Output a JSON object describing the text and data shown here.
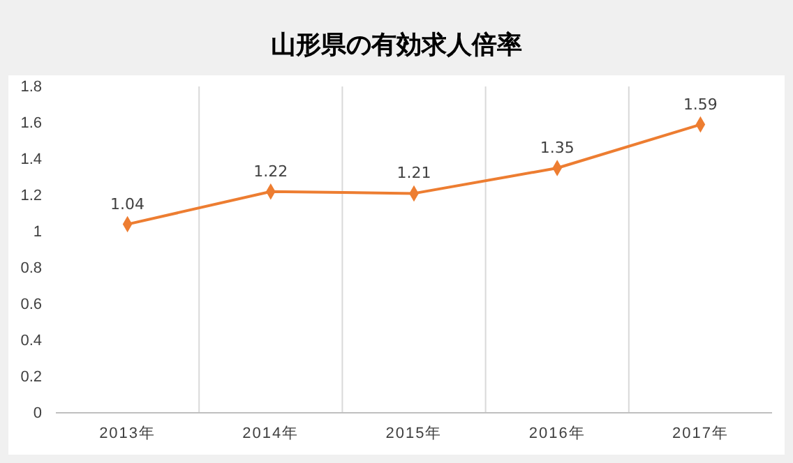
{
  "chart_data": {
    "type": "line",
    "title": "山形県の有効求人倍率",
    "categories": [
      "2013年",
      "2014年",
      "2015年",
      "2016年",
      "2017年"
    ],
    "series": [
      {
        "color": "#ed7d31",
        "values": [
          1.04,
          1.22,
          1.21,
          1.35,
          1.59
        ]
      }
    ],
    "ylim": [
      0,
      1.8
    ],
    "yticks": [
      0,
      0.2,
      0.4,
      0.6,
      0.8,
      1,
      1.2,
      1.4,
      1.6,
      1.8
    ],
    "grid": "x",
    "marker": "diamond",
    "line_style": "solid",
    "data_labels": true
  }
}
